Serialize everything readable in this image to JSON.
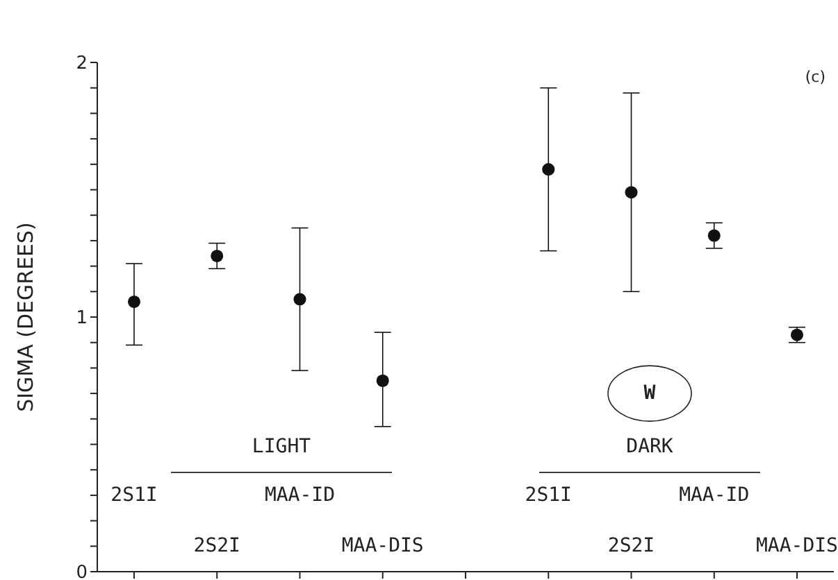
{
  "chart_data": {
    "type": "scatter",
    "ylabel": "SIGMA (DEGREES)",
    "categories": [
      "2S1I",
      "2S2I",
      "MAA-ID",
      "MAA-DIS",
      null,
      "2S1I",
      "2S2I",
      "MAA-ID",
      "MAA-DIS"
    ],
    "series": [
      {
        "color": "#111111",
        "values": [
          1.06,
          1.24,
          1.07,
          0.75,
          null,
          1.58,
          1.49,
          1.32,
          0.93
        ],
        "errors": [
          [
            0.89,
            1.21
          ],
          [
            1.19,
            1.29
          ],
          [
            0.79,
            1.35
          ],
          [
            0.57,
            0.94
          ],
          null,
          [
            1.26,
            1.9
          ],
          [
            1.1,
            1.88
          ],
          [
            1.27,
            1.37
          ],
          [
            0.9,
            0.96
          ]
        ]
      }
    ],
    "ylim": [
      0,
      2
    ],
    "yticks": [
      0,
      {
        "value": 0.1,
        "label": null
      },
      {
        "value": 0.2,
        "label": null
      },
      {
        "value": 0.3,
        "label": null
      },
      {
        "value": 0.4,
        "label": null
      },
      {
        "value": 0.5,
        "label": null
      },
      {
        "value": 0.6,
        "label": null
      },
      {
        "value": 0.7,
        "label": null
      },
      {
        "value": 0.8,
        "label": null
      },
      {
        "value": 0.9,
        "label": null
      },
      1,
      {
        "value": 1.1,
        "label": null
      },
      {
        "value": 1.2,
        "label": null
      },
      {
        "value": 1.3,
        "label": null
      },
      {
        "value": 1.4,
        "label": null
      },
      {
        "value": 1.5,
        "label": null
      },
      {
        "value": 1.6,
        "label": null
      },
      {
        "value": 1.7,
        "label": null
      },
      {
        "value": 1.8,
        "label": null
      },
      {
        "value": 1.9,
        "label": null
      },
      2
    ],
    "marker": "circle",
    "annotations": [
      "(c)",
      "LIGHT",
      "DARK",
      "W"
    ]
  }
}
